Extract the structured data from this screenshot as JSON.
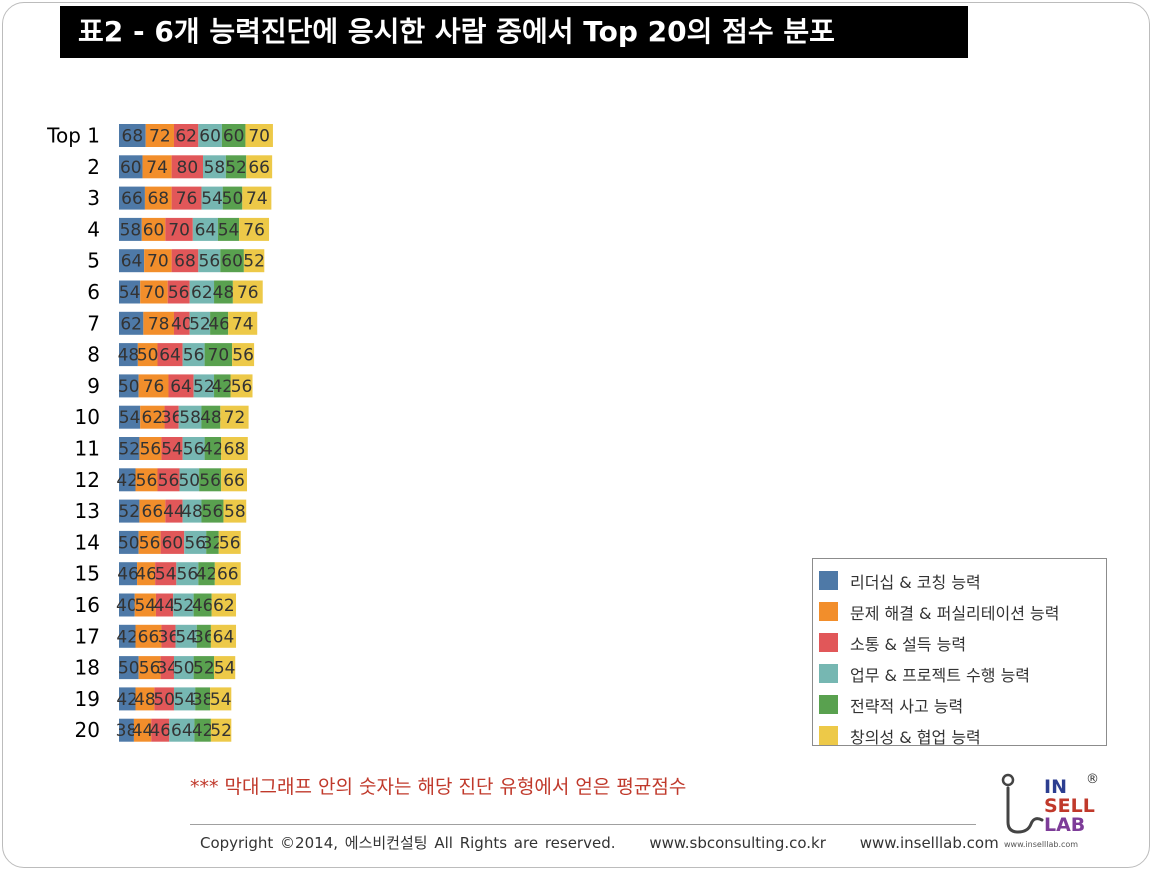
{
  "title": "표2 - 6개 능력진단에 응시한 사람 중에서 Top 20의 점수 분포",
  "colors": {
    "leadership": "#4e79a7",
    "problem": "#f28e2b",
    "communication": "#e15759",
    "work_project": "#76b7b2",
    "strategy": "#59a14f",
    "creativity": "#edc948"
  },
  "chart_data": {
    "type": "bar",
    "orientation": "horizontal-stacked",
    "title": "표2 - 6개 능력진단에 응시한 사람 중에서 Top 20의 점수 분포",
    "categories": [
      "Top  1",
      "2",
      "3",
      "4",
      "5",
      "6",
      "7",
      "8",
      "9",
      "10",
      "11",
      "12",
      "13",
      "14",
      "15",
      "16",
      "17",
      "18",
      "19",
      "20"
    ],
    "series": [
      {
        "name": "리더십 & 코칭 능력",
        "color_key": "leadership",
        "values": [
          68,
          60,
          66,
          58,
          64,
          54,
          62,
          48,
          50,
          54,
          52,
          42,
          52,
          50,
          46,
          40,
          42,
          50,
          42,
          38
        ]
      },
      {
        "name": "문제 해결 & 퍼실리테이션 능력",
        "color_key": "problem",
        "values": [
          72,
          74,
          68,
          60,
          70,
          70,
          78,
          50,
          76,
          62,
          56,
          56,
          66,
          56,
          46,
          54,
          66,
          56,
          48,
          44
        ]
      },
      {
        "name": "소통 & 설득 능력",
        "color_key": "communication",
        "values": [
          62,
          80,
          76,
          70,
          68,
          56,
          40,
          64,
          64,
          36,
          54,
          56,
          44,
          60,
          54,
          44,
          36,
          34,
          50,
          46
        ]
      },
      {
        "name": "업무 & 프로젝트 수행 능력",
        "color_key": "work_project",
        "values": [
          60,
          58,
          54,
          64,
          56,
          62,
          52,
          56,
          52,
          58,
          56,
          50,
          48,
          56,
          56,
          52,
          54,
          50,
          54,
          64
        ]
      },
      {
        "name": "전략적 사고 능력",
        "color_key": "strategy",
        "values": [
          60,
          52,
          50,
          54,
          60,
          48,
          46,
          70,
          42,
          48,
          42,
          56,
          56,
          32,
          42,
          46,
          36,
          52,
          38,
          42
        ]
      },
      {
        "name": "창의성 & 협업 능력",
        "color_key": "creativity",
        "values": [
          70,
          66,
          74,
          76,
          52,
          76,
          74,
          56,
          56,
          72,
          68,
          66,
          58,
          56,
          66,
          62,
          64,
          54,
          54,
          52
        ]
      }
    ],
    "legend_position": "bottom-right",
    "grid": false
  },
  "note": "*** 막대그래프 안의 숫자는 해당 진단 유형에서 얻은 평균점수",
  "footer": {
    "copyright": "Copyright ©2014, 에스비컨설팅 All Rights are reserved.",
    "site1": "www.sbconsulting.co.kr",
    "site2": "www.inselllab.com"
  },
  "logo": {
    "line1": "IN",
    "line2": "SELL",
    "line3": "LAB",
    "reg": "®",
    "url": "www.inselllab.com"
  }
}
